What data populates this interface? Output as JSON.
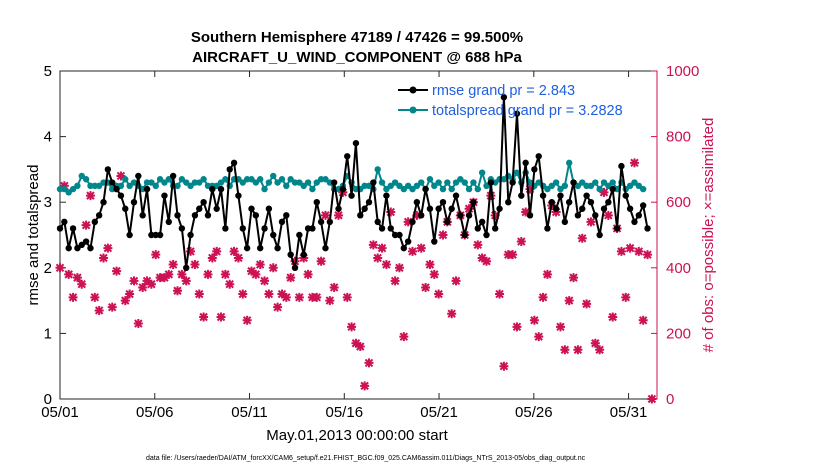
{
  "chart_data": {
    "type": "line",
    "title_line1": "Southern Hemisphere 47189 / 47426 = 99.500%",
    "title_line2": "AIRCRAFT_U_WIND_COMPONENT @ 688 hPa",
    "xlabel": "May.01,2013 00:00:00 start",
    "ylabel_left": "rmse and totalspread",
    "ylabel_right": "# of obs: o=possible; ×=assimilated",
    "footnote": "data file: /Users/raeder/DAI/ATM_forcXX/CAM6_setup/f.e21.FHIST_BGC.f09_025.CAM6assim.011/Diags_NTrS_2013-05/obs_diag_output.nc",
    "xlim": [
      0,
      31.5
    ],
    "ylim_left": [
      0,
      5
    ],
    "ylim_right": [
      0,
      1000
    ],
    "x_ticks": [
      {
        "value": 0,
        "label": "05/01"
      },
      {
        "value": 5,
        "label": "05/06"
      },
      {
        "value": 10,
        "label": "05/11"
      },
      {
        "value": 15,
        "label": "05/16"
      },
      {
        "value": 20,
        "label": "05/21"
      },
      {
        "value": 25,
        "label": "05/26"
      },
      {
        "value": 30,
        "label": "05/31"
      }
    ],
    "y_left_ticks": [
      "0",
      "1",
      "2",
      "3",
      "4",
      "5"
    ],
    "y_right_ticks": [
      "0",
      "200",
      "400",
      "600",
      "800",
      "1000"
    ],
    "legend": [
      {
        "label": "rmse grand pr = 2.843",
        "color": "#000000"
      },
      {
        "label": "totalspread grand pr = 3.2828",
        "color": "#00868b"
      }
    ],
    "series_rmse": [
      2.6,
      2.7,
      2.3,
      2.6,
      2.3,
      2.35,
      2.4,
      2.3,
      2.7,
      2.8,
      3.0,
      3.5,
      3.3,
      3.2,
      3.1,
      2.9,
      2.5,
      3.0,
      3.4,
      2.8,
      3.2,
      2.5,
      2.5,
      2.5,
      3.1,
      2.7,
      3.4,
      2.8,
      2.6,
      2.0,
      2.5,
      2.8,
      2.9,
      3.0,
      2.8,
      3.2,
      2.9,
      3.2,
      2.6,
      3.5,
      3.6,
      3.1,
      2.6,
      2.3,
      2.9,
      2.8,
      2.3,
      2.6,
      2.9,
      2.5,
      2.3,
      2.7,
      2.8,
      2.2,
      2.0,
      2.5,
      2.2,
      2.6,
      2.6,
      3.0,
      2.7,
      2.3,
      2.7,
      3.3,
      2.9,
      3.2,
      3.7,
      3.1,
      3.9,
      2.8,
      2.9,
      3.0,
      3.3,
      2.7,
      2.6,
      3.1,
      2.6,
      2.5,
      2.5,
      2.3,
      2.4,
      2.7,
      3.0,
      2.8,
      3.2,
      2.9,
      2.4,
      2.9,
      3.0,
      2.7,
      2.9,
      3.1,
      2.8,
      2.5,
      2.8,
      3.0,
      2.6,
      2.7,
      2.5,
      3.3,
      2.6,
      2.9,
      4.6,
      3.0,
      3.3,
      4.35,
      3.1,
      3.6,
      2.8,
      3.5,
      3.7,
      3.1,
      2.6,
      3.0,
      2.9,
      3.1,
      2.7,
      3.0,
      3.3,
      2.8,
      2.9,
      3.1,
      3.0,
      2.8,
      2.5,
      2.9,
      3.0,
      3.2,
      2.6,
      3.55,
      3.1,
      2.9,
      2.7,
      2.8,
      2.95,
      2.6
    ],
    "series_spread": [
      3.2,
      3.2,
      3.15,
      3.2,
      3.25,
      3.4,
      3.35,
      3.25,
      3.25,
      3.25,
      3.3,
      3.3,
      3.2,
      3.25,
      3.25,
      3.35,
      3.25,
      3.3,
      3.25,
      3.2,
      3.3,
      3.3,
      3.25,
      3.35,
      3.3,
      3.35,
      3.25,
      3.25,
      3.35,
      3.3,
      3.25,
      3.3,
      3.3,
      3.35,
      3.25,
      3.25,
      3.25,
      3.3,
      3.35,
      3.25,
      3.35,
      3.35,
      3.3,
      3.35,
      3.35,
      3.3,
      3.35,
      3.2,
      3.3,
      3.4,
      3.3,
      3.35,
      3.25,
      3.35,
      3.3,
      3.3,
      3.25,
      3.3,
      3.2,
      3.3,
      3.35,
      3.35,
      3.3,
      3.2,
      3.2,
      3.25,
      3.4,
      3.3,
      3.2,
      3.2,
      3.25,
      3.25,
      3.2,
      3.5,
      3.3,
      3.2,
      3.25,
      3.3,
      3.25,
      3.2,
      3.25,
      3.2,
      3.25,
      3.3,
      3.2,
      3.35,
      3.25,
      3.3,
      3.2,
      3.3,
      3.2,
      3.3,
      3.35,
      3.3,
      3.2,
      3.3,
      3.2,
      3.45,
      3.25,
      3.35,
      3.3,
      3.35,
      3.35,
      3.4,
      3.35,
      3.45,
      3.3,
      3.45,
      3.3,
      3.25,
      3.3,
      3.25,
      3.2,
      3.25,
      3.3,
      3.2,
      3.25,
      3.6,
      3.3,
      3.25,
      3.3,
      3.25,
      3.25,
      3.3,
      3.2,
      3.3,
      3.25,
      3.3,
      3.2,
      3.3,
      3.2,
      3.25,
      3.3,
      3.25,
      3.2
    ],
    "series_obs_possible": [
      400,
      650,
      380,
      310,
      370,
      350,
      530,
      620,
      310,
      270,
      430,
      460,
      280,
      390,
      680,
      300,
      320,
      360,
      230,
      340,
      360,
      350,
      440,
      370,
      370,
      380,
      410,
      330,
      380,
      360,
      450,
      410,
      320,
      250,
      380,
      430,
      450,
      250,
      380,
      350,
      450,
      430,
      320,
      240,
      390,
      380,
      410,
      360,
      320,
      400,
      280,
      320,
      310,
      370,
      420,
      310,
      430,
      380,
      310,
      310,
      420,
      560,
      300,
      340,
      560,
      630,
      310,
      220,
      170,
      160,
      40,
      110,
      470,
      430,
      460,
      410,
      570,
      360,
      400,
      190,
      540,
      450,
      560,
      460,
      340,
      410,
      380,
      320,
      500,
      540,
      260,
      360,
      560,
      500,
      580,
      600,
      470,
      430,
      420,
      620,
      560,
      320,
      100,
      440,
      440,
      220,
      480,
      570,
      640,
      240,
      190,
      310,
      380,
      590,
      570,
      220,
      150,
      300,
      370,
      150,
      490,
      290,
      540,
      170,
      150,
      630,
      560,
      250,
      520,
      450,
      310,
      460,
      720,
      450,
      240,
      440,
      0
    ]
  }
}
